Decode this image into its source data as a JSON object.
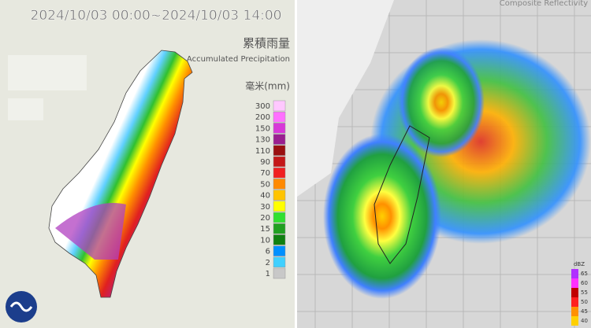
{
  "left_panel": {
    "time_range": "2024/10/03 00:00~2024/10/03 14:00",
    "title_zh": "累積雨量",
    "title_en": "Accumulated Precipitation",
    "unit": "毫米(mm)",
    "legend": [
      {
        "label": "300",
        "color": "#ffc8ff"
      },
      {
        "label": "200",
        "color": "#ff70ff"
      },
      {
        "label": "150",
        "color": "#d838d8"
      },
      {
        "label": "130",
        "color": "#9a1f90"
      },
      {
        "label": "110",
        "color": "#9a1010"
      },
      {
        "label": "90",
        "color": "#c41818"
      },
      {
        "label": "70",
        "color": "#f02020"
      },
      {
        "label": "50",
        "color": "#ff8a00"
      },
      {
        "label": "40",
        "color": "#ffc400"
      },
      {
        "label": "30",
        "color": "#ffff00"
      },
      {
        "label": "20",
        "color": "#30e030"
      },
      {
        "label": "15",
        "color": "#20a020"
      },
      {
        "label": "10",
        "color": "#108010"
      },
      {
        "label": "6",
        "color": "#0090ff"
      },
      {
        "label": "2",
        "color": "#40d0ff"
      },
      {
        "label": "1",
        "color": "#c8c8c8"
      }
    ]
  },
  "right_panel": {
    "title": "Composite Reflectivity",
    "unit": "dBZ",
    "legend": [
      {
        "label": "65",
        "color": "#b030ff"
      },
      {
        "label": "60",
        "color": "#ff30ff"
      },
      {
        "label": "55",
        "color": "#c00000"
      },
      {
        "label": "50",
        "color": "#ff2020"
      },
      {
        "label": "45",
        "color": "#ff9000"
      },
      {
        "label": "40",
        "color": "#ffd000"
      }
    ]
  }
}
